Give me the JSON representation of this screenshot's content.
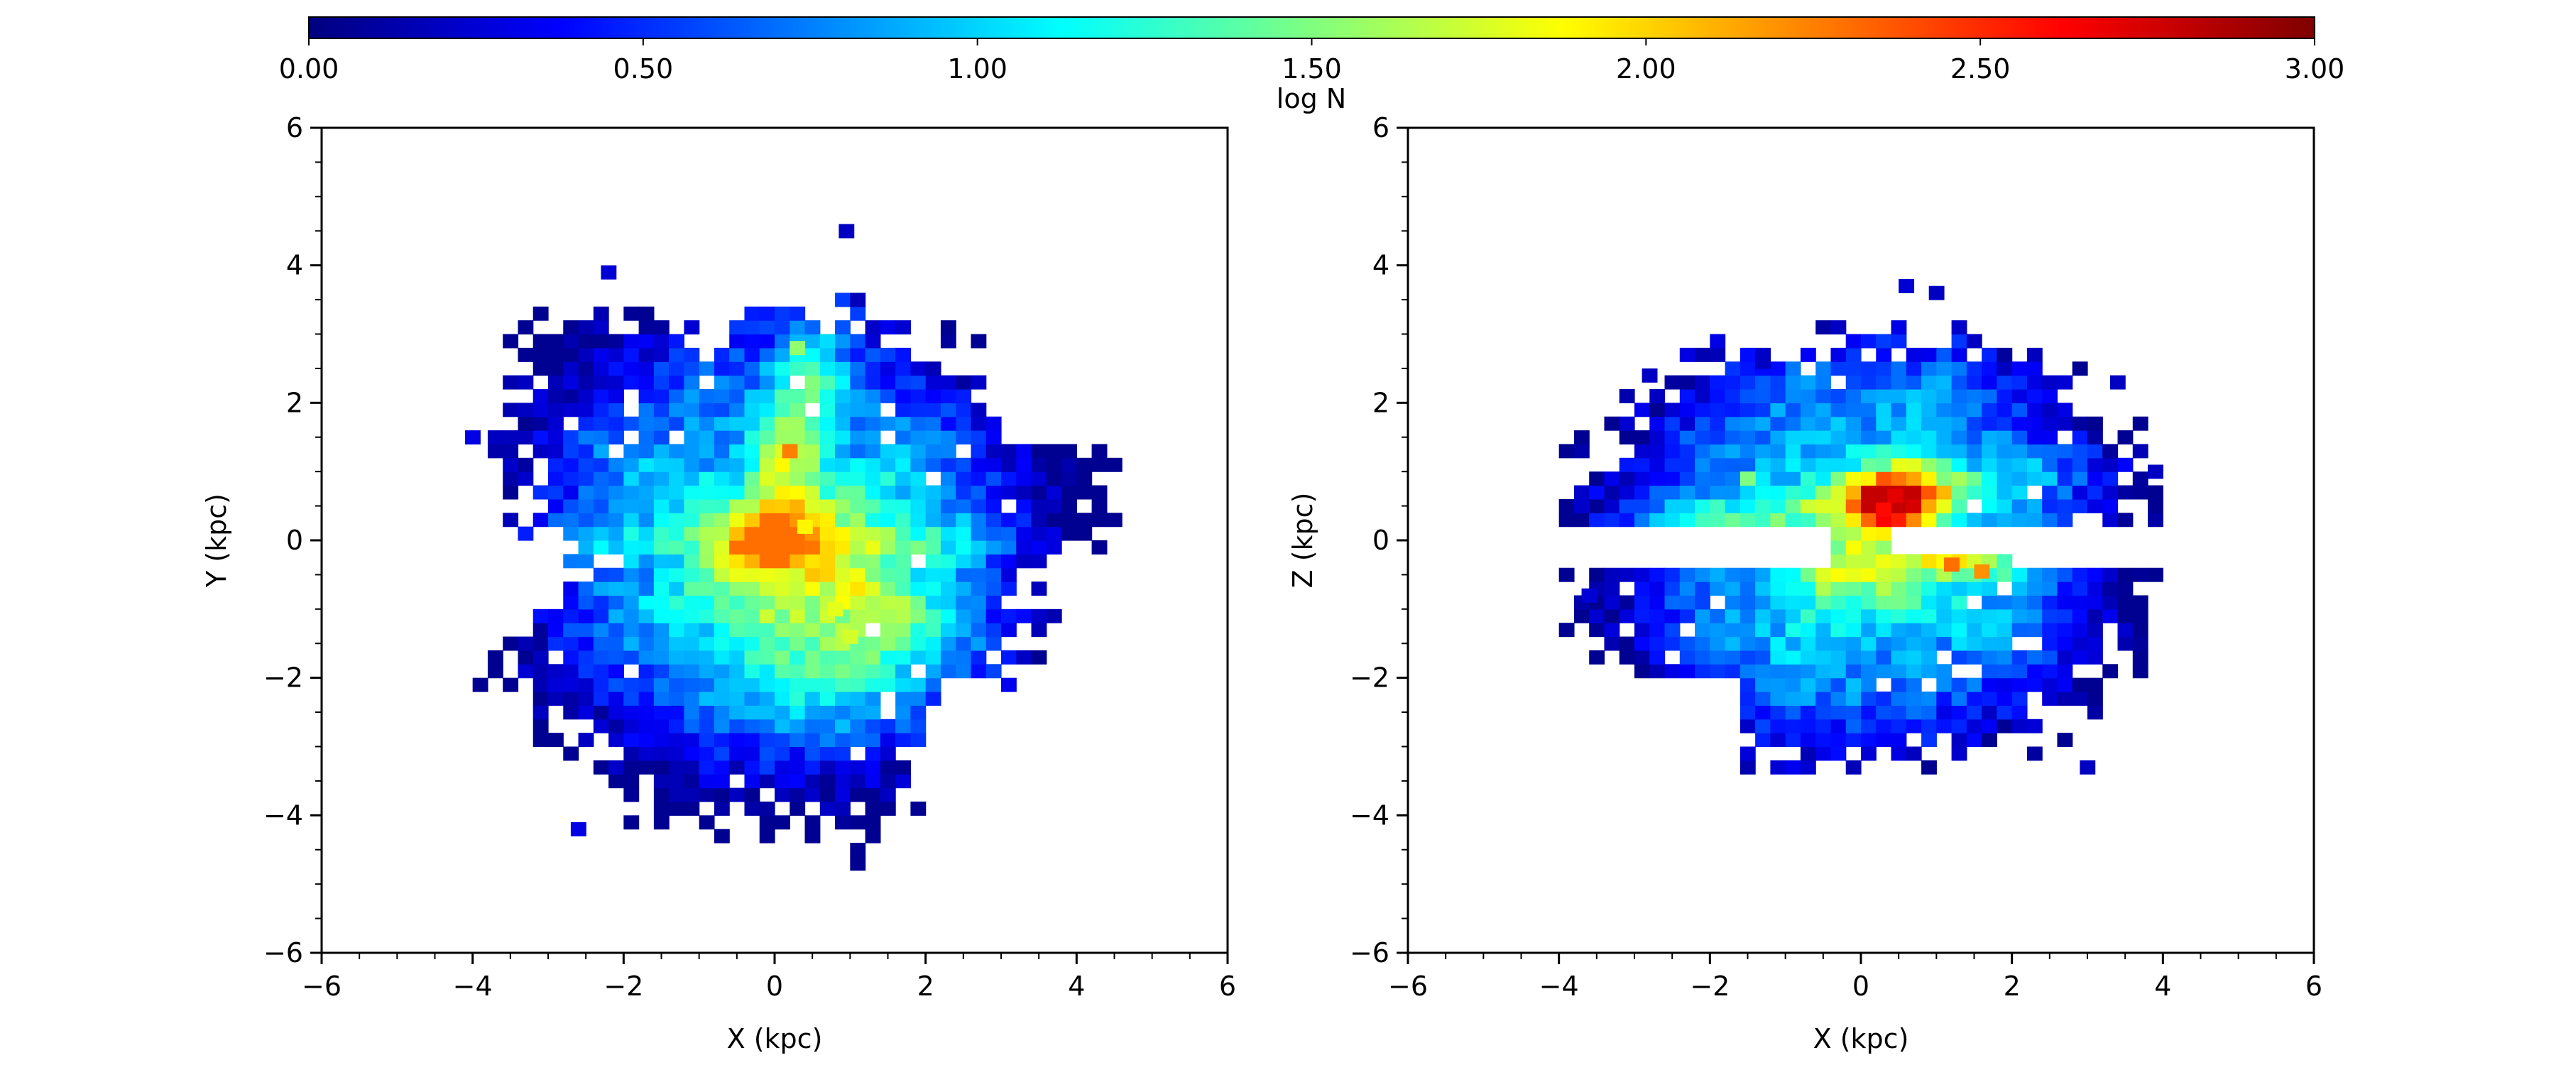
{
  "chart_data": [
    {
      "type": "heatmap",
      "title": "",
      "xlabel": "X (kpc)",
      "ylabel": "Y (kpc)",
      "xlim": [
        -6,
        6
      ],
      "ylim": [
        -6,
        6
      ],
      "xticks": [
        "−6",
        "−4",
        "−2",
        "0",
        "2",
        "4",
        "6"
      ],
      "yticks": [
        "−6",
        "−4",
        "−2",
        "0",
        "2",
        "4",
        "6"
      ],
      "cells": [
        {
          "x": -4,
          "y": 1.5,
          "v": 0.3
        },
        {
          "x": -2.2,
          "y": 3.9,
          "v": 0.25
        },
        {
          "x": 0.95,
          "y": 4.5,
          "v": 0.2
        },
        {
          "x": -2.6,
          "y": -4.2,
          "v": 0.3
        },
        {
          "x": 0.2,
          "y": 1.3,
          "v": 2.25
        },
        {
          "x": 0.4,
          "y": 0.2,
          "v": 1.9
        },
        {
          "x": 0.8,
          "y": -1.0,
          "v": 1.8
        },
        {
          "x": 1.0,
          "y": -1.4,
          "v": 1.75
        },
        {
          "x": 0.3,
          "y": 2.8,
          "v": 1.55
        }
      ],
      "grid": false
    },
    {
      "type": "heatmap",
      "title": "",
      "xlabel": "X (kpc)",
      "ylabel": "Z (kpc)",
      "xlim": [
        -6,
        6
      ],
      "ylim": [
        -6,
        6
      ],
      "xticks": [
        "−6",
        "−4",
        "−2",
        "0",
        "2",
        "4",
        "6"
      ],
      "yticks": [
        "−6",
        "−4",
        "−2",
        "0",
        "2",
        "4",
        "6"
      ],
      "cells": [
        {
          "x": 0.6,
          "y": 3.7,
          "v": 0.25
        },
        {
          "x": 1.0,
          "y": 3.6,
          "v": 0.2
        },
        {
          "x": -2.8,
          "y": 2.4,
          "v": 0.2
        },
        {
          "x": -1.3,
          "y": 2.6,
          "v": 0.2
        },
        {
          "x": 3.4,
          "y": 2.3,
          "v": 0.2
        },
        {
          "x": 3.9,
          "y": 1.0,
          "v": 0.2
        },
        {
          "x": -3.6,
          "y": -0.8,
          "v": 0.25
        },
        {
          "x": 3.0,
          "y": -3.3,
          "v": 0.2
        },
        {
          "x": 0.45,
          "y": 0.65,
          "v": 2.7
        },
        {
          "x": 0.3,
          "y": 0.45,
          "v": 2.6
        },
        {
          "x": 1.2,
          "y": -0.35,
          "v": 2.3
        },
        {
          "x": 1.6,
          "y": -0.45,
          "v": 2.2
        },
        {
          "x": -1.5,
          "y": 0.9,
          "v": 1.5
        }
      ],
      "grid": false
    }
  ],
  "colorbar": {
    "label": "log N",
    "range": [
      0,
      3
    ],
    "ticks": [
      "0.00",
      "0.50",
      "1.00",
      "1.50",
      "2.00",
      "2.50",
      "3.00"
    ],
    "colormap": "jet"
  },
  "colors": {
    "jet_stops": [
      "#00007f",
      "#0000ff",
      "#007fff",
      "#00ffff",
      "#7fff7f",
      "#ffff00",
      "#ff7f00",
      "#ff0000",
      "#7f0000"
    ]
  }
}
